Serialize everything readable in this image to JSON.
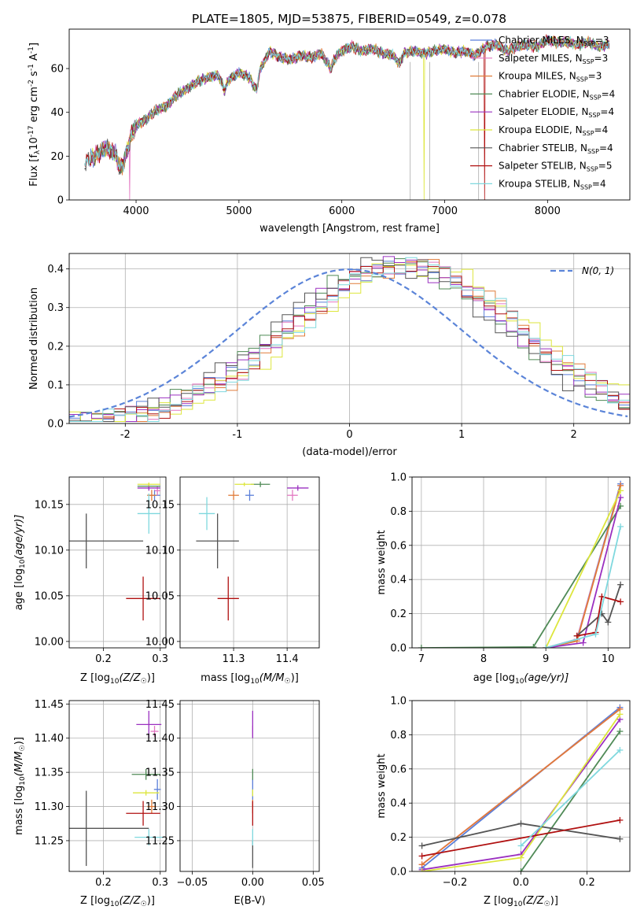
{
  "figure": {
    "title": "PLATE=1805, MJD=53875, FIBERID=0549, z=0.078"
  },
  "colors": {
    "Chabrier MILES": "#5b7fd9",
    "Salpeter MILES": "#e377c2",
    "Kroupa MILES": "#e07b39",
    "Chabrier ELODIE": "#4f8a56",
    "Salpeter ELODIE": "#9b30c0",
    "Kroupa ELODIE": "#dde63c",
    "Chabrier STELIB": "#555555",
    "Salpeter STELIB": "#b01010",
    "Kroupa STELIB": "#7fd8de",
    "normal": "#5b84d8"
  },
  "chart_data": [
    {
      "id": "spectrum",
      "type": "line",
      "xlabel": "wavelength [Angstrom, rest frame]",
      "ylabel_main": "Flux [f",
      "ylabel_rest": "10",
      "ylabel_exp1": "-17",
      "ylabel_mid": " erg cm",
      "ylabel_exp2": "-2",
      "ylabel_mid2": " s",
      "ylabel_exp3": "-1",
      "ylabel_mid3": " A",
      "ylabel_exp4": "-1",
      "ylabel_end": "]",
      "xlim": [
        3350,
        8800
      ],
      "ylim": [
        0,
        78
      ],
      "xticks": [
        4000,
        5000,
        6000,
        7000,
        8000
      ],
      "yticks": [
        0,
        20,
        40,
        60
      ],
      "anchors_x": [
        3500,
        3600,
        3700,
        3800,
        3850,
        3900,
        3950,
        4000,
        4100,
        4200,
        4300,
        4400,
        4500,
        4600,
        4700,
        4800,
        4860,
        4900,
        5000,
        5100,
        5175,
        5200,
        5300,
        5400,
        5500,
        5600,
        5700,
        5800,
        5890,
        5950,
        6000,
        6100,
        6200,
        6300,
        6400,
        6500,
        6563,
        6600,
        6700,
        6800,
        6900,
        7000,
        7100,
        7200,
        7300,
        7400,
        7500,
        7600,
        7700,
        7800,
        7900,
        8000,
        8100,
        8200,
        8300,
        8400,
        8500,
        8600
      ],
      "anchors_y": [
        17,
        20,
        24,
        21,
        14,
        20,
        29,
        34,
        37,
        41,
        43,
        48,
        51,
        54,
        56,
        57,
        50,
        55,
        58,
        56,
        50,
        59,
        68,
        65,
        64,
        66,
        65,
        67,
        60,
        66,
        68,
        70,
        68,
        69,
        67,
        66,
        62,
        67,
        68,
        67,
        68,
        69,
        67,
        68,
        66,
        70,
        71,
        68,
        70,
        71,
        70,
        73,
        72,
        72,
        71,
        72,
        70,
        71
      ],
      "dropouts": [
        {
          "series": "Salpeter MILES",
          "x": 3940
        },
        {
          "series": "Kroupa ELODIE",
          "x": 6800
        },
        {
          "series": "Salpeter STELIB",
          "x": 7390
        }
      ],
      "legend": [
        {
          "label": "Chabrier MILES",
          "n": "3"
        },
        {
          "label": "Salpeter MILES",
          "n": "3"
        },
        {
          "label": "Kroupa MILES",
          "n": "3"
        },
        {
          "label": "Chabrier ELODIE",
          "n": "4"
        },
        {
          "label": "Salpeter ELODIE",
          "n": "4"
        },
        {
          "label": "Kroupa ELODIE",
          "n": "4"
        },
        {
          "label": "Chabrier STELIB",
          "n": "4"
        },
        {
          "label": "Salpeter STELIB",
          "n": "5"
        },
        {
          "label": "Kroupa STELIB",
          "n": "4"
        }
      ],
      "legend_n_prefix": "N",
      "legend_n_sub": "SSP",
      "legend_placement": "right"
    },
    {
      "id": "residuals",
      "type": "histogram",
      "xlabel": "(data-model)/error",
      "ylabel": "Normed distribution",
      "xlim": [
        -2.5,
        2.5
      ],
      "ylim": [
        0,
        0.44
      ],
      "xticks": [
        -2,
        -1,
        0,
        1,
        2
      ],
      "yticks": [
        0.0,
        0.1,
        0.2,
        0.3,
        0.4
      ],
      "bin_width": 0.1,
      "shifts": [
        0.45,
        0.5,
        0.55,
        0.4,
        0.45,
        0.6,
        0.35,
        0.5,
        0.55
      ],
      "legend_label": "N(0, 1)",
      "legend_placement": "top-right",
      "grid": true
    },
    {
      "id": "age-vs-Z",
      "type": "errorbar",
      "xlabel": "Z [log",
      "xlabel_sub": "10",
      "xlabel_end": "(Z/Z",
      "xlabel_sun": "☉",
      "xlabel_close": ")]",
      "ylabel": "age  [log",
      "ylabel_sub": "10",
      "ylabel_end": "(age/yr)]",
      "xlim": [
        0.14,
        0.31
      ],
      "ylim": [
        9.993,
        10.18
      ],
      "xticks": [
        0.2,
        0.3
      ],
      "yticks": [
        10.0,
        10.05,
        10.1,
        10.15
      ],
      "points": [
        {
          "series": "Chabrier MILES",
          "x": 0.29,
          "y": 10.16,
          "xerr": 0.01,
          "yerr": 0.006
        },
        {
          "series": "Salpeter MILES",
          "x": 0.295,
          "y": 10.165,
          "xerr": 0.005,
          "yerr": 0.005
        },
        {
          "series": "Kroupa MILES",
          "x": 0.285,
          "y": 10.16,
          "xerr": 0.008,
          "yerr": 0.006
        },
        {
          "series": "Chabrier ELODIE",
          "x": 0.28,
          "y": 10.17,
          "xerr": 0.02,
          "yerr": 0.003
        },
        {
          "series": "Salpeter ELODIE",
          "x": 0.28,
          "y": 10.168,
          "xerr": 0.02,
          "yerr": 0.003
        },
        {
          "series": "Kroupa ELODIE",
          "x": 0.28,
          "y": 10.172,
          "xerr": 0.02,
          "yerr": 0.002
        },
        {
          "series": "Chabrier STELIB",
          "x": 0.17,
          "y": 10.11,
          "xerr": 0.1,
          "yerr": 0.03
        },
        {
          "series": "Salpeter STELIB",
          "x": 0.27,
          "y": 10.047,
          "xerr": 0.03,
          "yerr": 0.024
        },
        {
          "series": "Kroupa STELIB",
          "x": 0.28,
          "y": 10.14,
          "xerr": 0.02,
          "yerr": 0.022
        }
      ]
    },
    {
      "id": "age-vs-mass",
      "type": "errorbar",
      "xlabel": "mass [log",
      "xlabel_sub": "10",
      "xlabel_end": "(M/M",
      "xlabel_sun": "☉",
      "xlabel_close": ")]",
      "xlim": [
        11.2,
        11.46
      ],
      "ylim": [
        9.993,
        10.18
      ],
      "xticks": [
        11.3,
        11.4
      ],
      "yticks": [
        10.0,
        10.05,
        10.1,
        10.15
      ],
      "points": [
        {
          "series": "Chabrier MILES",
          "x": 11.33,
          "y": 10.16,
          "xerr": 0.008,
          "yerr": 0.006
        },
        {
          "series": "Salpeter MILES",
          "x": 11.41,
          "y": 10.16,
          "xerr": 0.01,
          "yerr": 0.006
        },
        {
          "series": "Kroupa MILES",
          "x": 11.3,
          "y": 10.16,
          "xerr": 0.01,
          "yerr": 0.005
        },
        {
          "series": "Chabrier ELODIE",
          "x": 11.35,
          "y": 10.172,
          "xerr": 0.018,
          "yerr": 0.003
        },
        {
          "series": "Salpeter ELODIE",
          "x": 11.42,
          "y": 10.168,
          "xerr": 0.02,
          "yerr": 0.003
        },
        {
          "series": "Kroupa ELODIE",
          "x": 11.32,
          "y": 10.172,
          "xerr": 0.018,
          "yerr": 0.002
        },
        {
          "series": "Chabrier STELIB",
          "x": 11.27,
          "y": 10.11,
          "xerr": 0.04,
          "yerr": 0.03
        },
        {
          "series": "Salpeter STELIB",
          "x": 11.29,
          "y": 10.047,
          "xerr": 0.02,
          "yerr": 0.024
        },
        {
          "series": "Kroupa STELIB",
          "x": 11.25,
          "y": 10.14,
          "xerr": 0.015,
          "yerr": 0.018
        }
      ]
    },
    {
      "id": "mass-weight-vs-age",
      "type": "line",
      "xlabel": "age  [log",
      "xlabel_sub": "10",
      "xlabel_end": "(age/yr)]",
      "ylabel": "mass weight",
      "xlim": [
        6.85,
        10.35
      ],
      "ylim": [
        0,
        1.0
      ],
      "xticks": [
        7,
        8,
        9,
        10
      ],
      "yticks": [
        0.0,
        0.2,
        0.4,
        0.6,
        0.8,
        1.0
      ],
      "series": [
        {
          "name": "Chabrier MILES",
          "x": [
            9.0,
            9.5,
            10.2
          ],
          "y": [
            0.0,
            0.05,
            0.96
          ]
        },
        {
          "name": "Salpeter MILES",
          "x": [
            9.0,
            9.5,
            10.2
          ],
          "y": [
            0.0,
            0.05,
            0.95
          ]
        },
        {
          "name": "Kroupa MILES",
          "x": [
            9.0,
            9.5,
            10.2
          ],
          "y": [
            0.0,
            0.04,
            0.95
          ]
        },
        {
          "name": "Chabrier ELODIE",
          "x": [
            7.0,
            8.8,
            10.2
          ],
          "y": [
            0.0,
            0.005,
            0.83
          ]
        },
        {
          "name": "Salpeter ELODIE",
          "x": [
            9.0,
            9.6,
            10.2
          ],
          "y": [
            0.0,
            0.03,
            0.88
          ]
        },
        {
          "name": "Kroupa ELODIE",
          "x": [
            9.0,
            10.2
          ],
          "y": [
            0.0,
            0.92
          ]
        },
        {
          "name": "Chabrier STELIB",
          "x": [
            9.5,
            9.9,
            10.0,
            10.2
          ],
          "y": [
            0.07,
            0.2,
            0.15,
            0.37
          ]
        },
        {
          "name": "Salpeter STELIB",
          "x": [
            9.5,
            9.8,
            9.9,
            10.2
          ],
          "y": [
            0.07,
            0.09,
            0.3,
            0.27
          ]
        },
        {
          "name": "Kroupa STELIB",
          "x": [
            9.0,
            9.8,
            10.2
          ],
          "y": [
            0.0,
            0.08,
            0.71
          ]
        }
      ]
    },
    {
      "id": "mass-vs-Z",
      "type": "errorbar",
      "xlabel": "Z [log",
      "xlabel_sub": "10",
      "xlabel_end": "(Z/Z",
      "xlabel_sun": "☉",
      "xlabel_close": ")]",
      "ylabel": "mass [log",
      "ylabel_sub": "10",
      "ylabel_end": "(M/M",
      "ylabel_sun": "☉",
      "ylabel_close": ")]",
      "xlim": [
        0.14,
        0.31
      ],
      "ylim": [
        11.205,
        11.455
      ],
      "xticks": [
        0.2,
        0.3
      ],
      "yticks": [
        11.25,
        11.3,
        11.35,
        11.4,
        11.45
      ],
      "points": [
        {
          "series": "Chabrier MILES",
          "x": 0.295,
          "y": 11.325,
          "xerr": 0.006,
          "yerr": 0.015
        },
        {
          "series": "Salpeter MILES",
          "x": 0.29,
          "y": 11.41,
          "xerr": 0.007,
          "yerr": 0.008
        },
        {
          "series": "Kroupa MILES",
          "x": 0.285,
          "y": 11.3,
          "xerr": 0.008,
          "yerr": 0.01
        },
        {
          "series": "Chabrier ELODIE",
          "x": 0.275,
          "y": 11.347,
          "xerr": 0.025,
          "yerr": 0.008
        },
        {
          "series": "Salpeter ELODIE",
          "x": 0.28,
          "y": 11.42,
          "xerr": 0.022,
          "yerr": 0.02
        },
        {
          "series": "Kroupa ELODIE",
          "x": 0.275,
          "y": 11.32,
          "xerr": 0.023,
          "yerr": 0.004
        },
        {
          "series": "Chabrier STELIB",
          "x": 0.17,
          "y": 11.268,
          "xerr": 0.11,
          "yerr": 0.055
        },
        {
          "series": "Salpeter STELIB",
          "x": 0.27,
          "y": 11.29,
          "xerr": 0.03,
          "yerr": 0.018
        },
        {
          "series": "Kroupa STELIB",
          "x": 0.28,
          "y": 11.255,
          "xerr": 0.025,
          "yerr": 0.012
        }
      ]
    },
    {
      "id": "mass-vs-EBV",
      "type": "errorbar",
      "xlabel": "E(B-V)",
      "xlim": [
        -0.06,
        0.055
      ],
      "ylim": [
        11.205,
        11.455
      ],
      "xticks": [
        -0.05,
        0.0,
        0.05
      ],
      "xticklabels": [
        "−0.05",
        "0.00",
        "0.05"
      ],
      "yticks": [
        11.25,
        11.3,
        11.35,
        11.4,
        11.45
      ],
      "points": [
        {
          "series": "Chabrier MILES",
          "x": 0.0,
          "y": 11.325,
          "xerr": 0.0,
          "yerr": 0.015
        },
        {
          "series": "Salpeter MILES",
          "x": 0.0,
          "y": 11.41,
          "xerr": 0.0,
          "yerr": 0.008
        },
        {
          "series": "Kroupa MILES",
          "x": 0.0,
          "y": 11.3,
          "xerr": 0.0,
          "yerr": 0.01
        },
        {
          "series": "Chabrier ELODIE",
          "x": 0.0,
          "y": 11.347,
          "xerr": 0.0,
          "yerr": 0.008
        },
        {
          "series": "Salpeter ELODIE",
          "x": 0.0,
          "y": 11.42,
          "xerr": 0.0,
          "yerr": 0.02
        },
        {
          "series": "Kroupa ELODIE",
          "x": 0.0,
          "y": 11.32,
          "xerr": 0.0,
          "yerr": 0.005
        },
        {
          "series": "Chabrier STELIB",
          "x": 0.0,
          "y": 11.23,
          "xerr": 0.0,
          "yerr": 0.02
        },
        {
          "series": "Salpeter STELIB",
          "x": 0.0,
          "y": 11.29,
          "xerr": 0.0,
          "yerr": 0.018
        },
        {
          "series": "Kroupa STELIB",
          "x": 0.0,
          "y": 11.255,
          "xerr": 0.0,
          "yerr": 0.012
        }
      ]
    },
    {
      "id": "mass-weight-vs-Z",
      "type": "line",
      "xlabel": "Z [log",
      "xlabel_sub": "10",
      "xlabel_end": "(Z/Z",
      "xlabel_sun": "☉",
      "xlabel_close": ")]",
      "ylabel": "mass weight",
      "xlim": [
        -0.33,
        0.33
      ],
      "ylim": [
        0,
        1.0
      ],
      "xticks": [
        -0.2,
        0.0,
        0.2
      ],
      "xticklabels": [
        "−0.2",
        "0.0",
        "0.2"
      ],
      "yticks": [
        0.0,
        0.2,
        0.4,
        0.6,
        0.8,
        1.0
      ],
      "series": [
        {
          "name": "Chabrier MILES",
          "x": [
            -0.3,
            0.3
          ],
          "y": [
            0.02,
            0.96
          ]
        },
        {
          "name": "Salpeter MILES",
          "x": [
            -0.3,
            0.3
          ],
          "y": [
            0.04,
            0.95
          ]
        },
        {
          "name": "Kroupa MILES",
          "x": [
            -0.3,
            0.3
          ],
          "y": [
            0.04,
            0.95
          ]
        },
        {
          "name": "Chabrier ELODIE",
          "x": [
            0.0,
            0.3
          ],
          "y": [
            0.0,
            0.82
          ]
        },
        {
          "name": "Salpeter ELODIE",
          "x": [
            -0.3,
            0.0,
            0.3
          ],
          "y": [
            0.01,
            0.1,
            0.89
          ]
        },
        {
          "name": "Kroupa ELODIE",
          "x": [
            -0.3,
            0.0,
            0.3
          ],
          "y": [
            0.0,
            0.08,
            0.92
          ]
        },
        {
          "name": "Chabrier STELIB",
          "x": [
            -0.3,
            0.0,
            0.3
          ],
          "y": [
            0.15,
            0.28,
            0.19
          ]
        },
        {
          "name": "Salpeter STELIB",
          "x": [
            -0.3,
            0.3
          ],
          "y": [
            0.09,
            0.3
          ]
        },
        {
          "name": "Kroupa STELIB",
          "x": [
            0.0,
            0.3
          ],
          "y": [
            0.15,
            0.71
          ]
        }
      ]
    }
  ]
}
